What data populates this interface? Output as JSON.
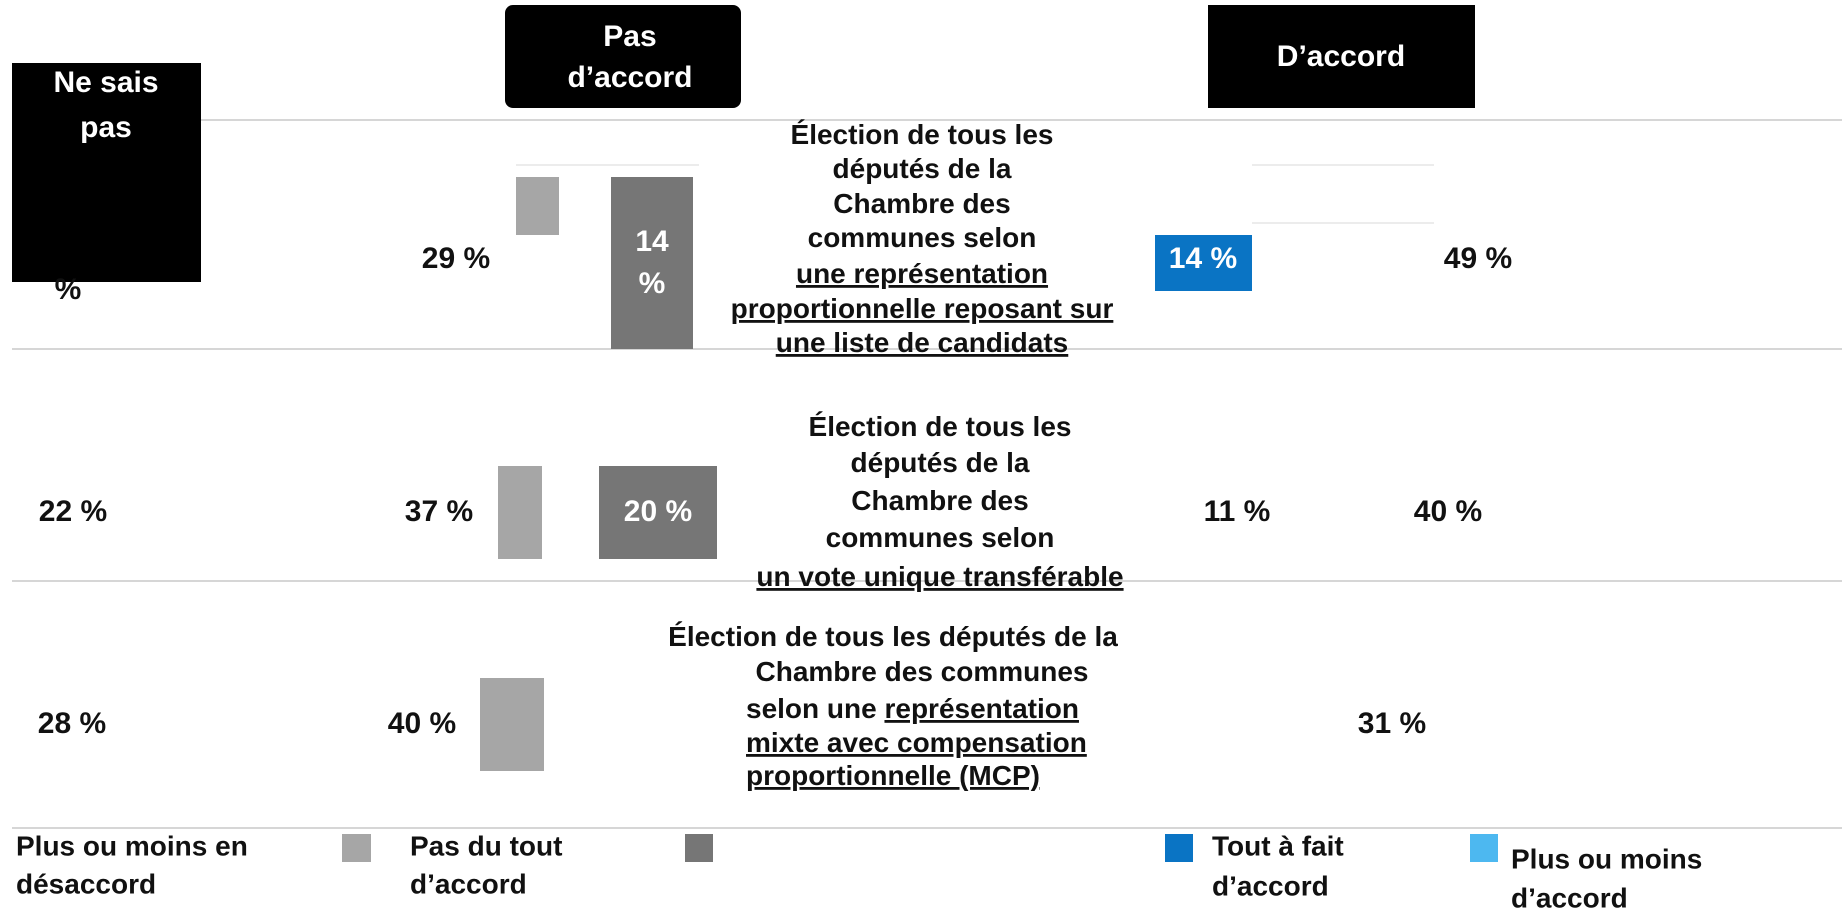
{
  "headers": {
    "dont_know": "Ne sais pas",
    "disagree": [
      "Pas",
      "d’accord"
    ],
    "agree": "D’accord"
  },
  "rows": [
    {
      "dont_know": "%",
      "disagree_total": "29 %",
      "strongly_disagree": [
        "14",
        "%"
      ],
      "label_lines": [
        [
          {
            "text": "Élection de tous les",
            "underline": false
          }
        ],
        [
          {
            "text": "députés de la",
            "underline": false
          }
        ],
        [
          {
            "text": "Chambre des",
            "underline": false
          }
        ],
        [
          {
            "text": "communes selon",
            "underline": false
          }
        ],
        [
          {
            "text": "une représentation",
            "underline": true
          }
        ],
        [
          {
            "text": "proportionnelle reposant sur",
            "underline": true
          }
        ],
        [
          {
            "text": "une liste de candidats",
            "underline": true
          }
        ]
      ],
      "strongly_agree": "14 %",
      "agree_total": "49 %"
    },
    {
      "dont_know": "22 %",
      "disagree_total": "37 %",
      "strongly_disagree": [
        "20 %"
      ],
      "label_lines": [
        [
          {
            "text": "Élection de tous les",
            "underline": false
          }
        ],
        [
          {
            "text": "députés de la",
            "underline": false
          }
        ],
        [
          {
            "text": "Chambre des",
            "underline": false
          }
        ],
        [
          {
            "text": "communes selon",
            "underline": false
          }
        ],
        [
          {
            "text": "un vote unique transférable",
            "underline": true
          }
        ]
      ],
      "strongly_agree": "11 %",
      "agree_total": "40 %"
    },
    {
      "dont_know": "28 %",
      "disagree_total": "40 %",
      "label_lines": [
        [
          {
            "text": "Élection de tous les députés de la",
            "underline": false
          }
        ],
        [
          {
            "text": "Chambre des communes",
            "underline": false
          }
        ],
        [
          {
            "text": "selon une ",
            "underline": false
          },
          {
            "text": "représentation",
            "underline": true
          }
        ],
        [
          {
            "text": "mixte avec compensation",
            "underline": true
          }
        ],
        [
          {
            "text": "proportionnelle (MCP)",
            "underline": true
          }
        ]
      ],
      "agree_total": "31 %"
    }
  ],
  "legend": [
    [
      "Plus ou moins en",
      "désaccord"
    ],
    [
      "Pas du tout",
      "d’accord"
    ],
    [
      "Tout à fait",
      "d’accord"
    ],
    [
      "Plus ou moins",
      "d’accord"
    ]
  ]
}
